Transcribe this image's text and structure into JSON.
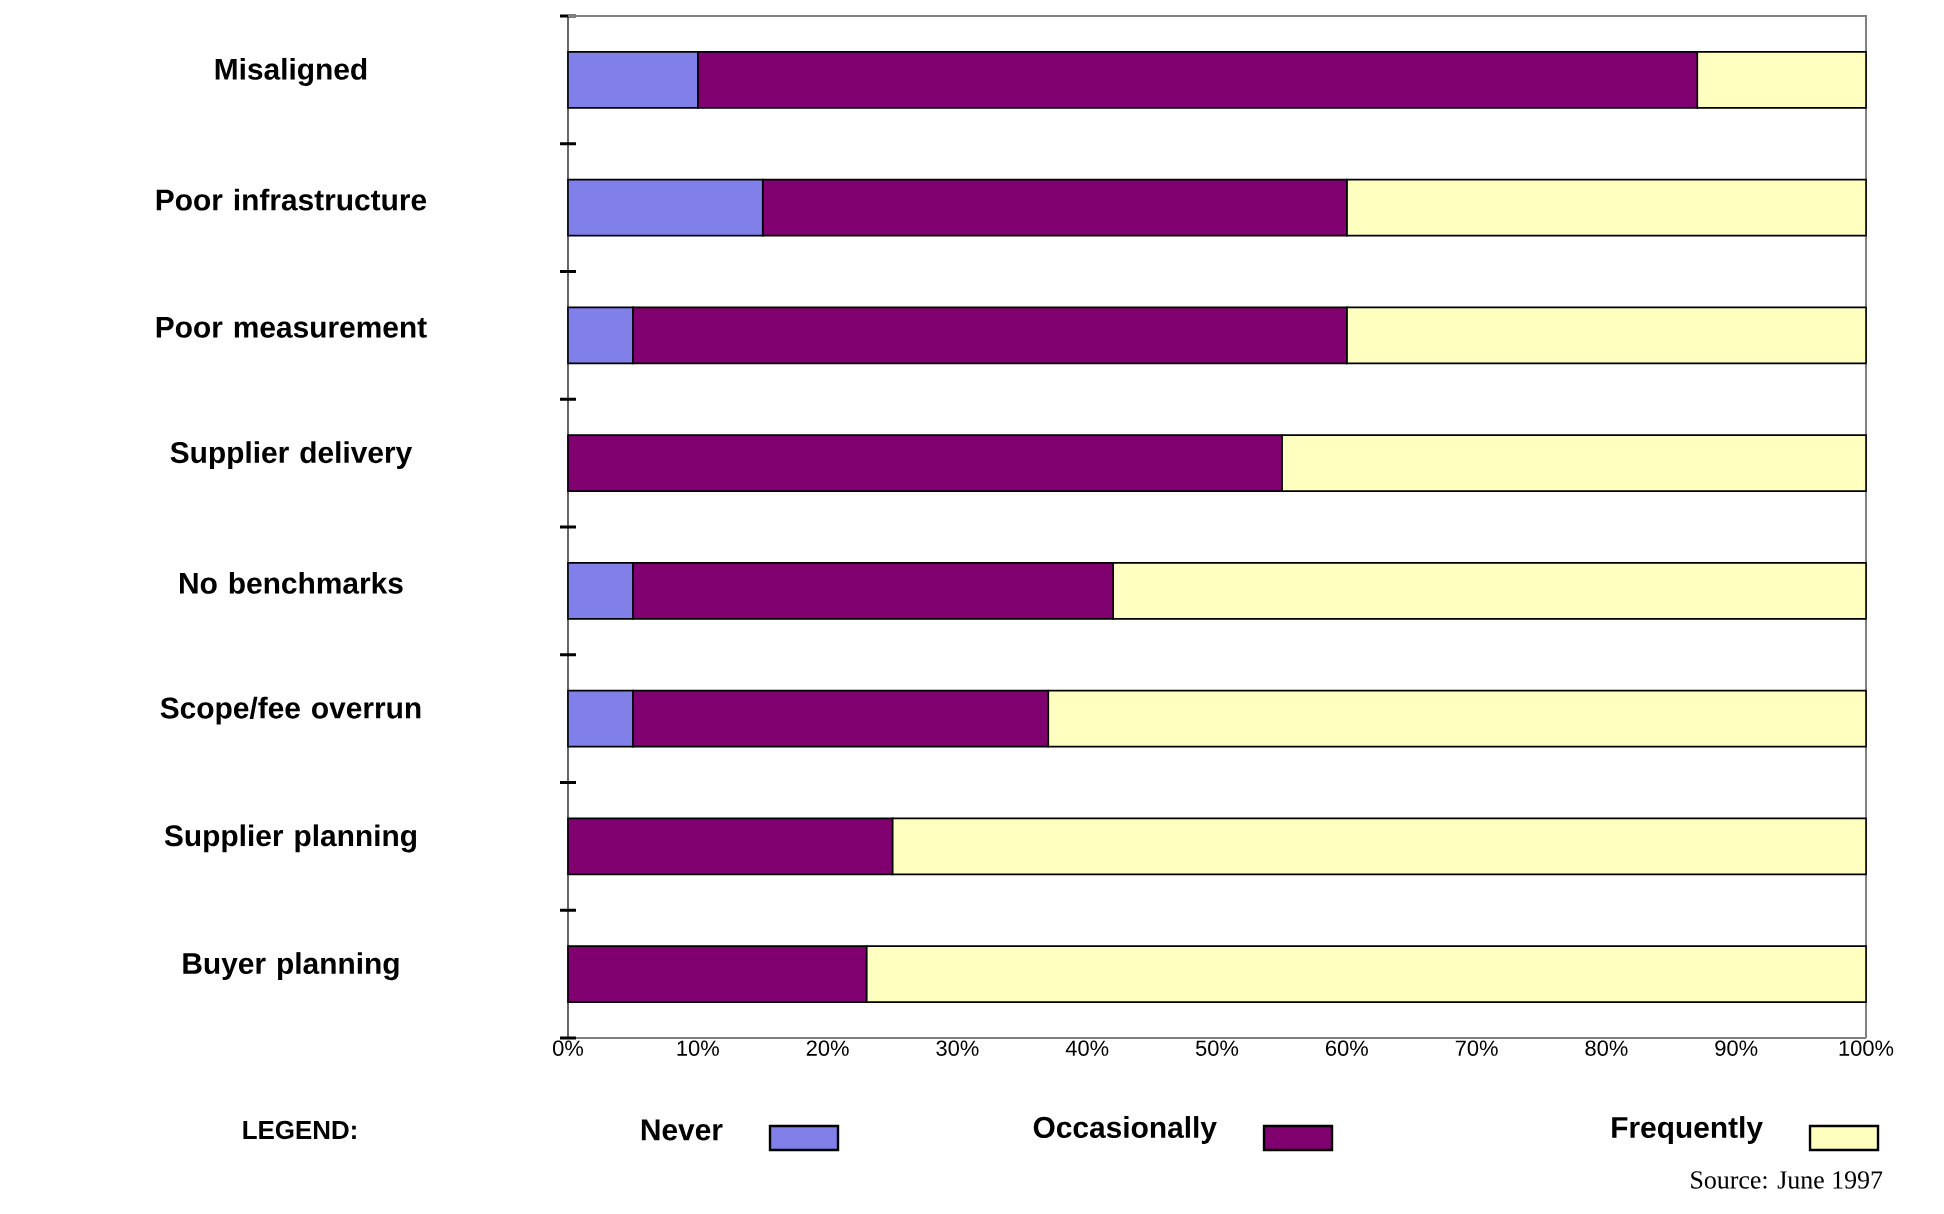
{
  "chart_data": {
    "type": "bar",
    "orientation": "horizontal",
    "stacked": true,
    "categories": [
      "Misaligned",
      "Poor infrastructure",
      "Poor measurement",
      "Supplier delivery",
      "No benchmarks",
      "Scope/fee overrun",
      "Supplier planning",
      "Buyer planning"
    ],
    "series": [
      {
        "name": "Never",
        "color": "#8080e8",
        "values": [
          10,
          15,
          5,
          0,
          5,
          5,
          0,
          0
        ]
      },
      {
        "name": "Occasionally",
        "color": "#800070",
        "values": [
          77,
          45,
          55,
          55,
          37,
          32,
          25,
          23
        ]
      },
      {
        "name": "Frequently",
        "color": "#ffffc0",
        "values": [
          13,
          40,
          40,
          45,
          58,
          63,
          75,
          77
        ]
      }
    ],
    "xlim": [
      0,
      100
    ],
    "xticks": [
      {
        "value": 0,
        "label": "0%"
      },
      {
        "value": 10,
        "label": "10%"
      },
      {
        "value": 20,
        "label": "20%"
      },
      {
        "value": 30,
        "label": "30%"
      },
      {
        "value": 40,
        "label": "40%"
      },
      {
        "value": 50,
        "label": "50%"
      },
      {
        "value": 60,
        "label": "60%"
      },
      {
        "value": 70,
        "label": "70%"
      },
      {
        "value": 80,
        "label": "80%"
      },
      {
        "value": 90,
        "label": "90%"
      },
      {
        "value": 100,
        "label": "100%"
      }
    ],
    "legend": "bottom",
    "legend_title": "LEGEND:",
    "annotations": [
      "Source:  June 1997"
    ]
  }
}
